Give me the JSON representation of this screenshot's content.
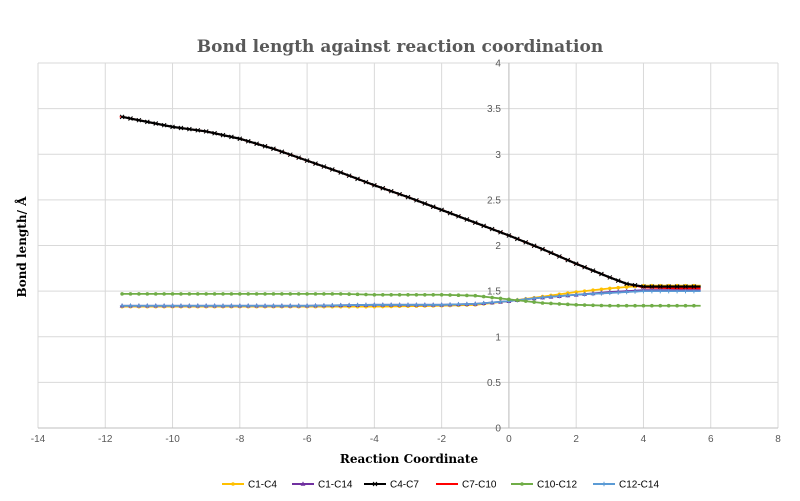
{
  "chart_data": {
    "type": "scatter",
    "title": "Bond length against reaction coordination",
    "xlabel": "Reaction Coordinate",
    "ylabel": "Bond length/ Å",
    "xlim": [
      -14,
      8
    ],
    "ylim": [
      0,
      4
    ],
    "xticks": [
      -14,
      -12,
      -10,
      -8,
      -6,
      -4,
      -2,
      0,
      2,
      4,
      6,
      8
    ],
    "yticks": [
      0,
      0.5,
      1,
      1.5,
      2,
      2.5,
      3,
      3.5,
      4
    ],
    "grid": true,
    "legend": "bottom",
    "series": [
      {
        "name": "C1-C4",
        "color": "#FFC000",
        "marker": "circle",
        "x": [
          -11.5,
          -10,
          -8,
          -6,
          -4,
          -2,
          -1,
          0,
          1,
          2,
          3,
          4,
          5,
          5.7
        ],
        "y": [
          1.33,
          1.33,
          1.33,
          1.33,
          1.33,
          1.34,
          1.35,
          1.39,
          1.44,
          1.49,
          1.53,
          1.56,
          1.56,
          1.56
        ]
      },
      {
        "name": "C1-C14",
        "color": "#7030A0",
        "marker": "triangle",
        "x": [
          -11.5,
          -10,
          -8,
          -6,
          -4,
          -2,
          -1,
          0,
          1,
          2,
          3,
          4,
          5,
          5.7
        ],
        "y": [
          1.34,
          1.34,
          1.34,
          1.34,
          1.35,
          1.35,
          1.36,
          1.39,
          1.43,
          1.46,
          1.49,
          1.51,
          1.51,
          1.51
        ]
      },
      {
        "name": "C4-C7",
        "color": "#000000",
        "marker": "x",
        "x": [
          -11.5,
          -10,
          -9,
          -8,
          -7,
          -6,
          -5,
          -4,
          -3,
          -2,
          -1,
          0,
          1,
          2,
          3,
          3.5,
          4,
          5,
          5.7
        ],
        "y": [
          3.41,
          3.3,
          3.25,
          3.17,
          3.06,
          2.93,
          2.8,
          2.66,
          2.53,
          2.39,
          2.25,
          2.11,
          1.96,
          1.8,
          1.65,
          1.58,
          1.55,
          1.55,
          1.55
        ]
      },
      {
        "name": "C7-C10",
        "color": "#FF0000",
        "marker": "dash",
        "x": [
          -11.5,
          -10,
          -9,
          -8,
          -7,
          -6,
          -5,
          -4,
          -3,
          -2,
          -1,
          0,
          1,
          2,
          3,
          3.5,
          4,
          5,
          5.7
        ],
        "y": [
          3.41,
          3.3,
          3.25,
          3.17,
          3.06,
          2.93,
          2.8,
          2.66,
          2.53,
          2.39,
          2.25,
          2.11,
          1.96,
          1.8,
          1.65,
          1.58,
          1.54,
          1.53,
          1.53
        ]
      },
      {
        "name": "C10-C12",
        "color": "#70AD47",
        "marker": "circle",
        "x": [
          -11.5,
          -10,
          -8,
          -6,
          -5,
          -4,
          -2,
          -1,
          0,
          1,
          2,
          3,
          4,
          5,
          5.7
        ],
        "y": [
          1.47,
          1.47,
          1.47,
          1.47,
          1.47,
          1.46,
          1.46,
          1.45,
          1.41,
          1.37,
          1.35,
          1.34,
          1.34,
          1.34,
          1.34
        ]
      },
      {
        "name": "C12-C14",
        "color": "#5B9BD5",
        "marker": "plus",
        "x": [
          -11.5,
          -10,
          -8,
          -6,
          -4,
          -2,
          -1,
          0,
          1,
          2,
          3,
          4,
          5,
          5.7
        ],
        "y": [
          1.34,
          1.34,
          1.34,
          1.34,
          1.35,
          1.35,
          1.36,
          1.39,
          1.43,
          1.46,
          1.48,
          1.5,
          1.5,
          1.5
        ]
      }
    ]
  }
}
